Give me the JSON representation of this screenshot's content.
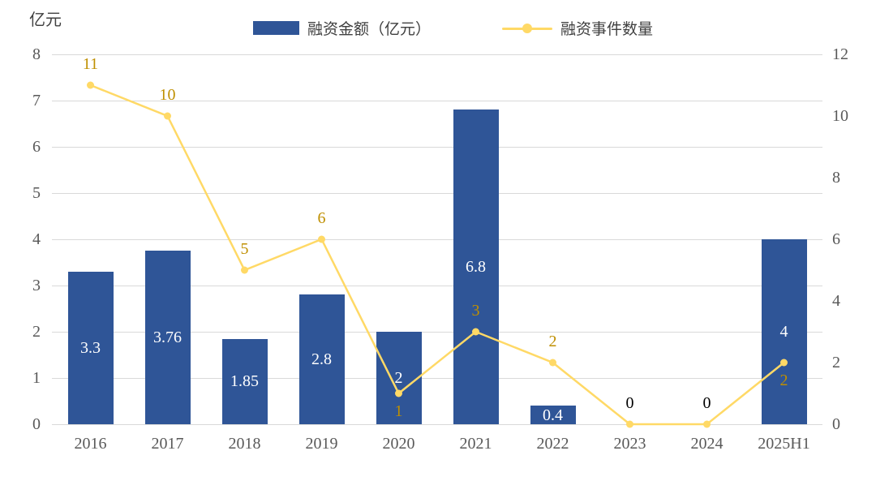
{
  "axis_title": "亿元",
  "legend": {
    "bar_label": "融资金额（亿元）",
    "line_label": "融资事件数量"
  },
  "colors": {
    "bar": "#2F5597",
    "line": "#FFD966",
    "bar_label_text": "#FFFFFF",
    "line_label_gold": "#BF8F00",
    "line_label_black": "#000000",
    "axis_text": "#595959",
    "legend_text": "#404040",
    "gridline": "#D9D9D9"
  },
  "chart_data": {
    "type": "bar",
    "subtype": "bar-line-combo",
    "title": "",
    "categories": [
      "2016",
      "2017",
      "2018",
      "2019",
      "2020",
      "2021",
      "2022",
      "2023",
      "2024",
      "2025H1"
    ],
    "series": [
      {
        "name": "融资金额（亿元）",
        "chart_type": "bar",
        "axis": "left",
        "color": "#2F5597",
        "values": [
          3.3,
          3.76,
          1.85,
          2.8,
          2,
          6.8,
          0.4,
          0,
          0,
          4
        ],
        "labels": [
          "3.3",
          "3.76",
          "1.85",
          "2.8",
          "2",
          "6.8",
          "0.4",
          "",
          "",
          "4"
        ]
      },
      {
        "name": "融资事件数量",
        "chart_type": "line",
        "axis": "right",
        "color": "#FFD966",
        "values": [
          11,
          10,
          5,
          6,
          1,
          3,
          2,
          0,
          0,
          2
        ],
        "labels": [
          {
            "text": "11",
            "position": "above",
            "color": "#BF8F00"
          },
          {
            "text": "10",
            "position": "above",
            "color": "#BF8F00"
          },
          {
            "text": "5",
            "position": "above",
            "color": "#BF8F00"
          },
          {
            "text": "6",
            "position": "above",
            "color": "#BF8F00"
          },
          {
            "text": "1",
            "position": "below",
            "color": "#BF8F00"
          },
          {
            "text": "3",
            "position": "above",
            "color": "#BF8F00"
          },
          {
            "text": "2",
            "position": "above",
            "color": "#BF8F00"
          },
          {
            "text": "0",
            "position": "above",
            "color": "#000000"
          },
          {
            "text": "0",
            "position": "above",
            "color": "#000000"
          },
          {
            "text": "2",
            "position": "below",
            "color": "#BF8F00"
          }
        ]
      }
    ],
    "left_axis": {
      "title": "亿元",
      "min": 0,
      "max": 8,
      "ticks": [
        0,
        1,
        2,
        3,
        4,
        5,
        6,
        7,
        8
      ]
    },
    "right_axis": {
      "min": 0,
      "max": 12,
      "ticks": [
        0,
        2,
        4,
        6,
        8,
        10,
        12
      ]
    },
    "grid": true,
    "legend_position": "top"
  }
}
